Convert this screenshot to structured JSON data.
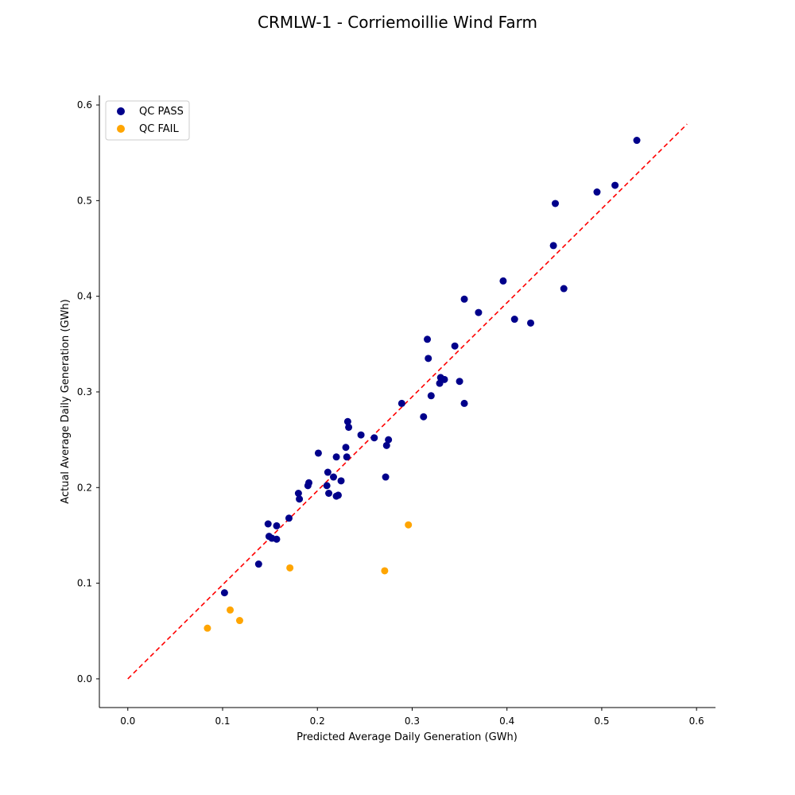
{
  "chart_data": {
    "type": "scatter",
    "title": "CRMLW-1 - Corriemoillie Wind Farm",
    "xlabel": "Predicted Average Daily Generation (GWh)",
    "ylabel": "Actual Average Daily Generation (GWh)",
    "xlim": [
      -0.03,
      0.62
    ],
    "ylim": [
      -0.03,
      0.61
    ],
    "xticks": [
      "0.0",
      "0.1",
      "0.2",
      "0.3",
      "0.4",
      "0.5",
      "0.6"
    ],
    "yticks": [
      "0.0",
      "0.1",
      "0.2",
      "0.3",
      "0.4",
      "0.5",
      "0.6"
    ],
    "legend_position": "top-left",
    "grid": false,
    "reference_line": {
      "style": "dashed",
      "color": "#ff0000",
      "from": [
        0.0,
        0.0
      ],
      "to": [
        0.59,
        0.58
      ]
    },
    "series": [
      {
        "name": "QC PASS",
        "color": "#00008b",
        "points": [
          [
            0.102,
            0.09
          ],
          [
            0.138,
            0.12
          ],
          [
            0.148,
            0.162
          ],
          [
            0.149,
            0.149
          ],
          [
            0.152,
            0.147
          ],
          [
            0.157,
            0.146
          ],
          [
            0.157,
            0.16
          ],
          [
            0.17,
            0.168
          ],
          [
            0.18,
            0.194
          ],
          [
            0.181,
            0.188
          ],
          [
            0.19,
            0.202
          ],
          [
            0.191,
            0.205
          ],
          [
            0.201,
            0.236
          ],
          [
            0.21,
            0.202
          ],
          [
            0.211,
            0.216
          ],
          [
            0.212,
            0.194
          ],
          [
            0.217,
            0.211
          ],
          [
            0.22,
            0.191
          ],
          [
            0.22,
            0.232
          ],
          [
            0.222,
            0.192
          ],
          [
            0.225,
            0.207
          ],
          [
            0.23,
            0.242
          ],
          [
            0.231,
            0.232
          ],
          [
            0.232,
            0.269
          ],
          [
            0.233,
            0.263
          ],
          [
            0.246,
            0.255
          ],
          [
            0.26,
            0.252
          ],
          [
            0.272,
            0.211
          ],
          [
            0.273,
            0.244
          ],
          [
            0.275,
            0.25
          ],
          [
            0.289,
            0.288
          ],
          [
            0.312,
            0.274
          ],
          [
            0.316,
            0.355
          ],
          [
            0.317,
            0.335
          ],
          [
            0.32,
            0.296
          ],
          [
            0.329,
            0.309
          ],
          [
            0.33,
            0.315
          ],
          [
            0.334,
            0.313
          ],
          [
            0.345,
            0.348
          ],
          [
            0.35,
            0.311
          ],
          [
            0.355,
            0.397
          ],
          [
            0.355,
            0.288
          ],
          [
            0.37,
            0.383
          ],
          [
            0.396,
            0.416
          ],
          [
            0.408,
            0.376
          ],
          [
            0.425,
            0.372
          ],
          [
            0.449,
            0.453
          ],
          [
            0.451,
            0.497
          ],
          [
            0.46,
            0.408
          ],
          [
            0.495,
            0.509
          ],
          [
            0.514,
            0.516
          ],
          [
            0.537,
            0.563
          ]
        ]
      },
      {
        "name": "QC FAIL",
        "color": "#ffa500",
        "points": [
          [
            0.084,
            0.053
          ],
          [
            0.108,
            0.072
          ],
          [
            0.118,
            0.061
          ],
          [
            0.171,
            0.116
          ],
          [
            0.271,
            0.113
          ],
          [
            0.296,
            0.161
          ]
        ]
      }
    ]
  }
}
